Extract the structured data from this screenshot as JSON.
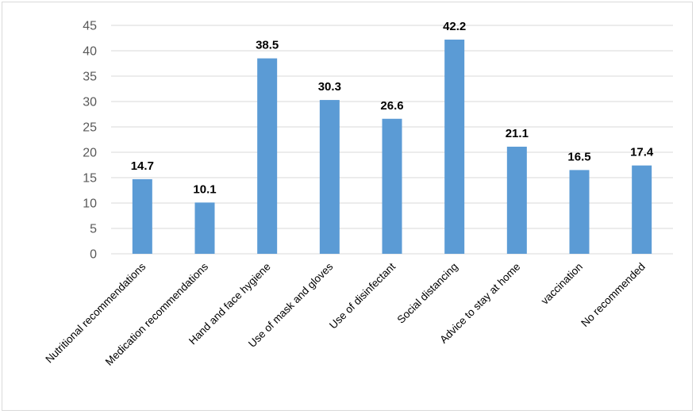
{
  "chart_data": {
    "type": "bar",
    "title": "",
    "xlabel": "",
    "ylabel": "",
    "categories": [
      "Nutritional recommendations",
      "Medication recommendations",
      "Hand and face hygiene",
      "Use of mask and gloves",
      "Use of disinfectant",
      "Social distancing",
      "Advice to stay at home",
      "vaccination",
      "No recommended"
    ],
    "values": [
      14.7,
      10.1,
      38.5,
      30.3,
      26.6,
      42.2,
      21.1,
      16.5,
      17.4
    ],
    "data_labels": [
      "14.7",
      "10.1",
      "38.5",
      "30.3",
      "26.6",
      "42.2",
      "21.1",
      "16.5",
      "17.4"
    ],
    "ylim": [
      0,
      45
    ],
    "yticks": [
      0,
      5,
      10,
      15,
      20,
      25,
      30,
      35,
      40,
      45
    ],
    "grid": true,
    "legend": "none",
    "colors": {
      "bar": "#5b9bd5",
      "grid": "#d9d9d9",
      "axis_text": "#595959"
    }
  }
}
